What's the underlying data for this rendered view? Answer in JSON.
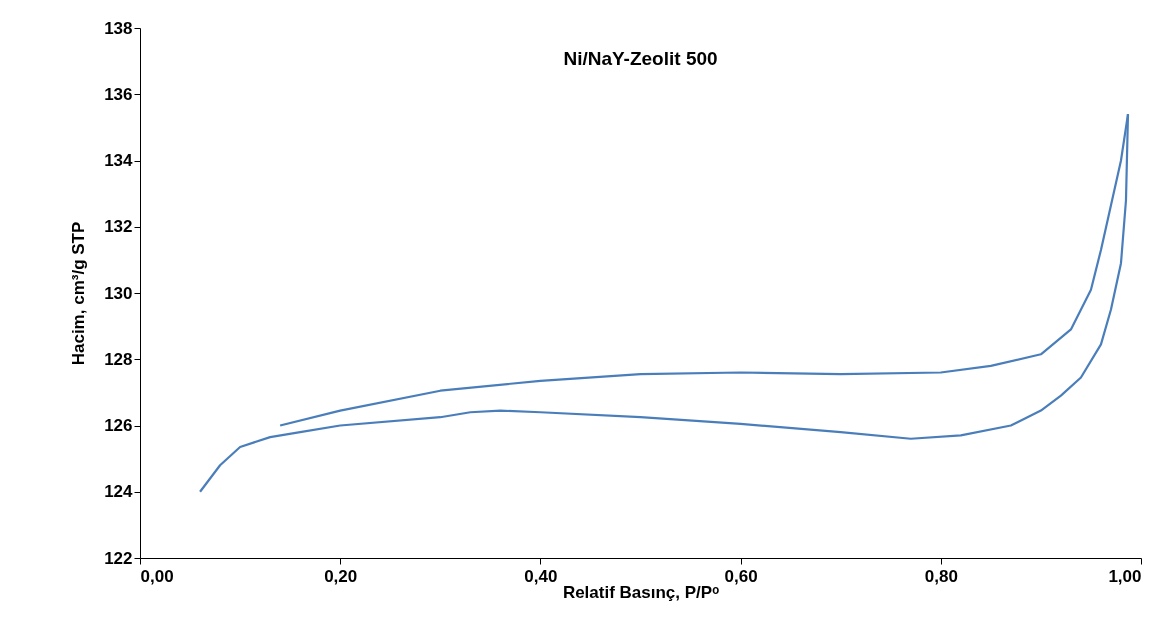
{
  "chart_data": {
    "type": "line",
    "title": "Ni/NaY-Zeolit 500",
    "xlabel": "Relatif Basınç, P/Pᵒ",
    "ylabel": "Hacim, cm³/g STP",
    "xlim": [
      0,
      1
    ],
    "ylim": [
      122,
      138
    ],
    "xticks": [
      {
        "value": 0,
        "label": "0,00"
      },
      {
        "value": 0.2,
        "label": "0,20"
      },
      {
        "value": 0.4,
        "label": "0,40"
      },
      {
        "value": 0.6,
        "label": "0,60"
      },
      {
        "value": 0.8,
        "label": "0,80"
      },
      {
        "value": 1,
        "label": "1,00"
      }
    ],
    "yticks": [
      122,
      124,
      126,
      128,
      130,
      132,
      134,
      136,
      138
    ],
    "grid": false,
    "legend": false,
    "marker": "none",
    "line_style": "solid",
    "series": [
      {
        "color": "#4a7ebb",
        "x": [
          0.06,
          0.08,
          0.1,
          0.13,
          0.16,
          0.2,
          0.3,
          0.33,
          0.36,
          0.4,
          0.5,
          0.6,
          0.7,
          0.77,
          0.82,
          0.87,
          0.9,
          0.92,
          0.94,
          0.96,
          0.97,
          0.98,
          0.985,
          0.987
        ],
        "values": [
          124.0,
          124.8,
          125.35,
          125.65,
          125.8,
          126.0,
          126.25,
          126.4,
          126.45,
          126.4,
          126.25,
          126.05,
          125.8,
          125.6,
          125.7,
          126.0,
          126.45,
          126.9,
          127.45,
          128.45,
          129.5,
          130.9,
          132.8,
          135.4
        ]
      },
      {
        "color": "#4a7ebb",
        "x": [
          0.14,
          0.2,
          0.3,
          0.4,
          0.5,
          0.6,
          0.7,
          0.8,
          0.85,
          0.9,
          0.93,
          0.95,
          0.96,
          0.97,
          0.98,
          0.987
        ],
        "values": [
          126.0,
          126.45,
          127.05,
          127.35,
          127.55,
          127.6,
          127.55,
          127.6,
          127.8,
          128.15,
          128.9,
          130.1,
          131.3,
          132.65,
          134.0,
          135.4
        ]
      }
    ]
  }
}
